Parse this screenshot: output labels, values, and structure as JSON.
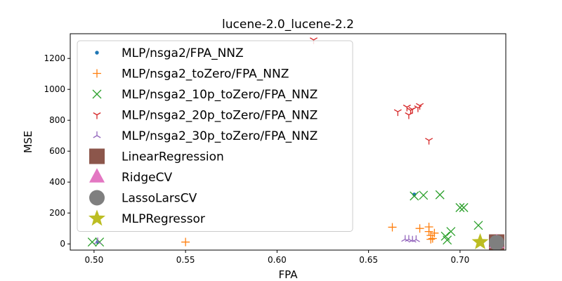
{
  "chart_data": {
    "type": "scatter",
    "title": "lucene-2.0_lucene-2.2",
    "xlabel": "FPA",
    "ylabel": "MSE",
    "xlim": [
      0.487,
      0.725
    ],
    "ylim": [
      -40,
      1360
    ],
    "xticks": [
      0.5,
      0.55,
      0.6,
      0.65,
      0.7
    ],
    "xtick_labels": [
      "0.50",
      "0.55",
      "0.60",
      "0.65",
      "0.70"
    ],
    "yticks": [
      0,
      200,
      400,
      600,
      800,
      1000,
      1200
    ],
    "ytick_labels": [
      "0",
      "200",
      "400",
      "600",
      "800",
      "1000",
      "1200"
    ],
    "grid": false,
    "legend_position": "upper-left",
    "series": [
      {
        "name": "MLP/nsga2/FPA_NNZ",
        "marker": "dot",
        "color": "#1f77b4",
        "points": [
          [
            0.502,
            12
          ],
          [
            0.675,
            320
          ]
        ]
      },
      {
        "name": "MLP/nsga2_toZero/FPA_NNZ",
        "marker": "plus",
        "color": "#ff7f0e",
        "points": [
          [
            0.55,
            12
          ],
          [
            0.663,
            108
          ],
          [
            0.678,
            100
          ],
          [
            0.683,
            80
          ],
          [
            0.684,
            55
          ],
          [
            0.685,
            35
          ],
          [
            0.686,
            70
          ],
          [
            0.684,
            30
          ],
          [
            0.683,
            110
          ]
        ]
      },
      {
        "name": "MLP/nsga2_10p_toZero/FPA_NNZ",
        "marker": "x",
        "color": "#2ca02c",
        "points": [
          [
            0.499,
            12
          ],
          [
            0.503,
            12
          ],
          [
            0.675,
            310
          ],
          [
            0.68,
            315
          ],
          [
            0.689,
            318
          ],
          [
            0.692,
            50
          ],
          [
            0.693,
            25
          ],
          [
            0.695,
            80
          ],
          [
            0.7,
            235
          ],
          [
            0.702,
            235
          ],
          [
            0.71,
            120
          ]
        ]
      },
      {
        "name": "MLP/nsga2_20p_toZero/FPA_NNZ",
        "marker": "tri_down",
        "color": "#d62728",
        "points": [
          [
            0.62,
            1320
          ],
          [
            0.666,
            855
          ],
          [
            0.671,
            885
          ],
          [
            0.673,
            865
          ],
          [
            0.672,
            835
          ],
          [
            0.674,
            870
          ],
          [
            0.678,
            895
          ],
          [
            0.677,
            880
          ],
          [
            0.683,
            670
          ]
        ]
      },
      {
        "name": "MLP/nsga2_30p_toZero/FPA_NNZ",
        "marker": "tri_up",
        "color": "#9467bd",
        "points": [
          [
            0.502,
            14
          ],
          [
            0.67,
            30
          ],
          [
            0.672,
            30
          ],
          [
            0.674,
            25
          ],
          [
            0.676,
            28
          ]
        ]
      },
      {
        "name": "LinearRegression",
        "marker": "square",
        "color": "#8c564b",
        "points": [
          [
            0.72,
            12
          ]
        ]
      },
      {
        "name": "RidgeCV",
        "marker": "triangle",
        "color": "#e377c2",
        "points": [
          [
            0.72,
            8
          ]
        ]
      },
      {
        "name": "LassoLarsCV",
        "marker": "circle",
        "color": "#7f7f7f",
        "points": [
          [
            0.72,
            8
          ]
        ]
      },
      {
        "name": "MLPRegressor",
        "marker": "star",
        "color": "#bcbd22",
        "points": [
          [
            0.711,
            12
          ]
        ]
      }
    ]
  }
}
